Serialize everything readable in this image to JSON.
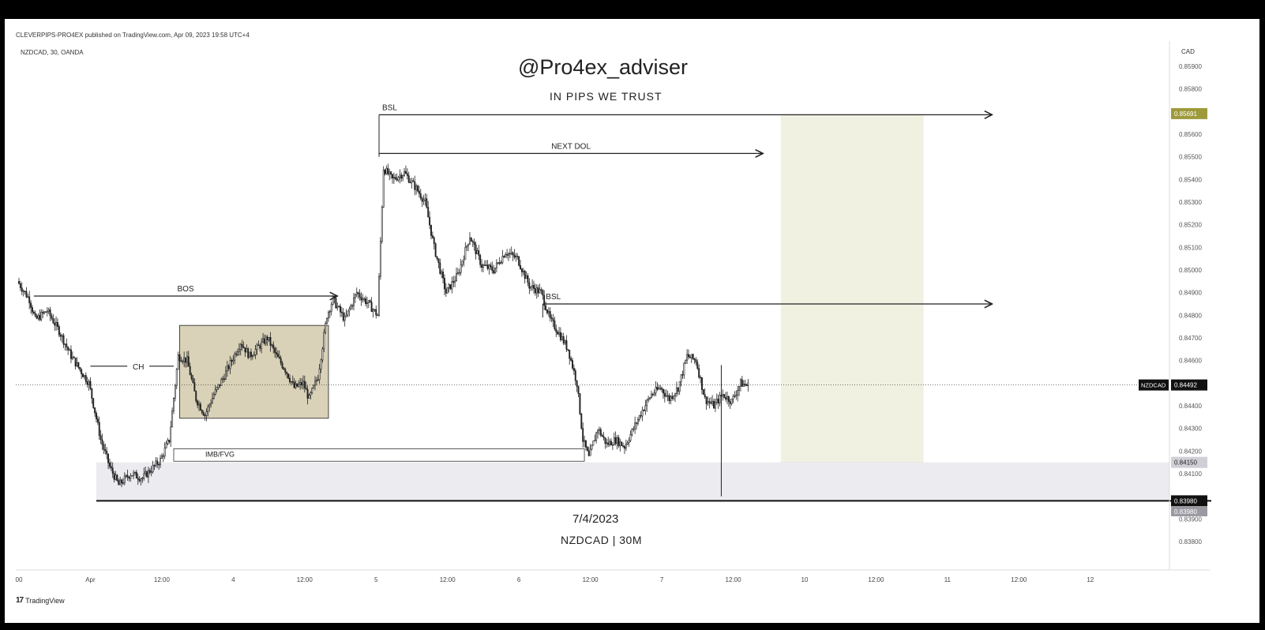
{
  "header": {
    "publish_line": "CLEVERPIPS-PRO4EX published on TradingView.com, Apr 09, 2023 19:58 UTC+4",
    "symbol_line": "NZDCAD, 30, OANDA",
    "currency": "CAD"
  },
  "overlay_text": {
    "handle": "@Pro4ex_adviser",
    "tagline": "IN PIPS WE TRUST",
    "date": "7/4/2023",
    "pair_timeframe": "NZDCAD | 30M"
  },
  "footer": {
    "logo_mark": "17",
    "logo_text": "TradingView"
  },
  "colors": {
    "up": "#222222",
    "down": "#222222",
    "consolidation_box": "#d9d2b8",
    "target_zone": "#f1f1e2",
    "demand_zone": "#ebebf0",
    "demand_zone_future": "#b6b6c0",
    "price_tag_current": "#111111",
    "price_tag_target": "#9e9a3c"
  },
  "chart_data": {
    "type": "candlestick",
    "symbol": "NZDCAD",
    "timeframe": "30",
    "xlabel": "",
    "ylabel": "",
    "ylim": [
      0.8375,
      0.8599
    ],
    "y_ticks": [
      "0.85900",
      "0.85800",
      "0.85600",
      "0.85500",
      "0.85400",
      "0.85300",
      "0.85200",
      "0.85100",
      "0.85000",
      "0.84900",
      "0.84800",
      "0.84700",
      "0.84600",
      "0.84400",
      "0.84300",
      "0.84200",
      "0.84100",
      "0.83900",
      "0.83800"
    ],
    "x_ticks": [
      {
        "label": "00",
        "t": 0
      },
      {
        "label": "Apr",
        "t": 24
      },
      {
        "label": "12:00",
        "t": 48
      },
      {
        "label": "4",
        "t": 72
      },
      {
        "label": "12:00",
        "t": 96
      },
      {
        "label": "5",
        "t": 120
      },
      {
        "label": "12:00",
        "t": 144
      },
      {
        "label": "6",
        "t": 168
      },
      {
        "label": "12:00",
        "t": 192
      },
      {
        "label": "7",
        "t": 216
      },
      {
        "label": "12:00",
        "t": 240
      },
      {
        "label": "10",
        "t": 264
      },
      {
        "label": "12:00",
        "t": 288
      },
      {
        "label": "11",
        "t": 312
      },
      {
        "label": "12:00",
        "t": 336
      },
      {
        "label": "12",
        "t": 360
      }
    ],
    "price_path": [
      [
        0,
        0.8495
      ],
      [
        4,
        0.8487
      ],
      [
        6,
        0.8478
      ],
      [
        10,
        0.8482
      ],
      [
        14,
        0.8473
      ],
      [
        18,
        0.8462
      ],
      [
        24,
        0.845
      ],
      [
        28,
        0.8425
      ],
      [
        31,
        0.8413
      ],
      [
        34,
        0.8405
      ],
      [
        38,
        0.841
      ],
      [
        42,
        0.8408
      ],
      [
        45,
        0.8412
      ],
      [
        48,
        0.8416
      ],
      [
        51,
        0.8425
      ],
      [
        54,
        0.8462
      ],
      [
        57,
        0.846
      ],
      [
        60,
        0.8443
      ],
      [
        63,
        0.8436
      ],
      [
        66,
        0.8445
      ],
      [
        69,
        0.8452
      ],
      [
        72,
        0.846
      ],
      [
        75,
        0.8468
      ],
      [
        78,
        0.8462
      ],
      [
        81,
        0.8466
      ],
      [
        84,
        0.847
      ],
      [
        87,
        0.8462
      ],
      [
        90,
        0.8456
      ],
      [
        93,
        0.8448
      ],
      [
        96,
        0.845
      ],
      [
        98,
        0.8443
      ],
      [
        101,
        0.8453
      ],
      [
        104,
        0.848
      ],
      [
        106,
        0.8487
      ],
      [
        110,
        0.8478
      ],
      [
        114,
        0.849
      ],
      [
        118,
        0.8485
      ],
      [
        121,
        0.848
      ],
      [
        123,
        0.8545
      ],
      [
        126,
        0.854
      ],
      [
        130,
        0.8543
      ],
      [
        134,
        0.8536
      ],
      [
        137,
        0.853
      ],
      [
        140,
        0.851
      ],
      [
        144,
        0.849
      ],
      [
        148,
        0.8498
      ],
      [
        152,
        0.8515
      ],
      [
        156,
        0.8502
      ],
      [
        160,
        0.85
      ],
      [
        164,
        0.8508
      ],
      [
        168,
        0.8505
      ],
      [
        172,
        0.8493
      ],
      [
        176,
        0.849
      ],
      [
        179,
        0.8478
      ],
      [
        182,
        0.8472
      ],
      [
        185,
        0.8465
      ],
      [
        188,
        0.845
      ],
      [
        190,
        0.8425
      ],
      [
        192,
        0.8417
      ],
      [
        195,
        0.843
      ],
      [
        198,
        0.8423
      ],
      [
        201,
        0.8425
      ],
      [
        204,
        0.8422
      ],
      [
        207,
        0.843
      ],
      [
        210,
        0.8438
      ],
      [
        213,
        0.8445
      ],
      [
        216,
        0.8448
      ],
      [
        219,
        0.8443
      ],
      [
        222,
        0.8448
      ],
      [
        225,
        0.8462
      ],
      [
        228,
        0.846
      ],
      [
        231,
        0.8443
      ],
      [
        234,
        0.844
      ],
      [
        237,
        0.8445
      ],
      [
        240,
        0.8442
      ],
      [
        243,
        0.845
      ],
      [
        245,
        0.8449
      ]
    ],
    "annotations": [
      {
        "label": "BOS",
        "kind": "arrow",
        "t1": 5,
        "t2": 107,
        "price": 0.84885
      },
      {
        "label": "CH",
        "kind": "line",
        "t1": 24,
        "t2": 52,
        "price": 0.84575
      },
      {
        "label": "BSL",
        "kind": "arrow",
        "t1": 121,
        "t2": 327,
        "price": 0.85686
      },
      {
        "label": "NEXT DOL",
        "kind": "arrow",
        "t1": 121,
        "t2": 250,
        "price": 0.85515
      },
      {
        "label": "BSL",
        "kind": "arrow",
        "t1": 176,
        "t2": 327,
        "price": 0.8485
      },
      {
        "label": "IMB/FVG",
        "kind": "box",
        "t1": 52,
        "t2": 190,
        "p1": 0.8421,
        "p2": 0.84155
      }
    ],
    "zones": [
      {
        "name": "consolidation",
        "t1": 54,
        "t2": 104,
        "p1": 0.84755,
        "p2": 0.84345
      },
      {
        "name": "target",
        "t1": 256,
        "t2": 304,
        "p1": 0.85686,
        "p2": 0.8415
      },
      {
        "name": "demand",
        "t1": 26,
        "t2": 360,
        "p1": 0.8415,
        "p2": 0.8398
      }
    ],
    "levels": [
      {
        "name": "current",
        "price": 0.84492,
        "label": "NZDCAD",
        "value": "0.84492"
      },
      {
        "name": "target",
        "price": 0.85691,
        "value": "0.85691"
      },
      {
        "name": "zone_top",
        "price": 0.8415,
        "value": "0.84150"
      },
      {
        "name": "zone_bottom",
        "price": 0.8398,
        "value": "0.83980"
      },
      {
        "name": "zone_bottom_2",
        "price": 0.83978,
        "value": "0.83980"
      }
    ]
  }
}
